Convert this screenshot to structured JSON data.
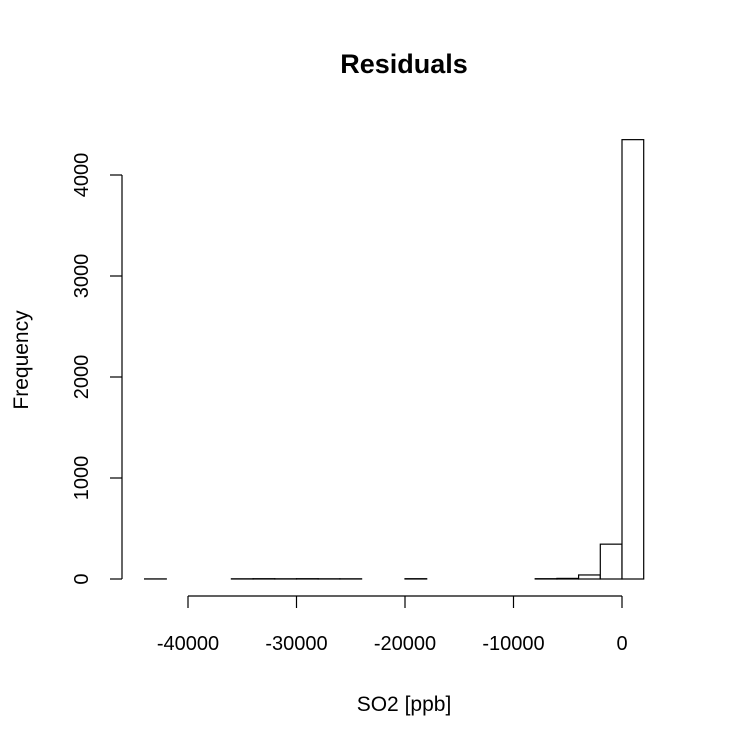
{
  "chart_data": {
    "type": "bar",
    "title": "Residuals",
    "xlabel": "SO2 [ppb]",
    "ylabel": "Frequency",
    "xlim": [
      -44000,
      4000
    ],
    "ylim": [
      0,
      4350
    ],
    "bin_width": 2000,
    "bins": [
      {
        "x0": -44000,
        "x1": -42000,
        "count": 1
      },
      {
        "x0": -42000,
        "x1": -40000,
        "count": 0
      },
      {
        "x0": -40000,
        "x1": -38000,
        "count": 0
      },
      {
        "x0": -38000,
        "x1": -36000,
        "count": 0
      },
      {
        "x0": -36000,
        "x1": -34000,
        "count": 2
      },
      {
        "x0": -34000,
        "x1": -32000,
        "count": 3
      },
      {
        "x0": -32000,
        "x1": -30000,
        "count": 2
      },
      {
        "x0": -30000,
        "x1": -28000,
        "count": 3
      },
      {
        "x0": -28000,
        "x1": -26000,
        "count": 2
      },
      {
        "x0": -26000,
        "x1": -24000,
        "count": 2
      },
      {
        "x0": -24000,
        "x1": -22000,
        "count": 0
      },
      {
        "x0": -22000,
        "x1": -20000,
        "count": 0
      },
      {
        "x0": -20000,
        "x1": -18000,
        "count": 3
      },
      {
        "x0": -18000,
        "x1": -16000,
        "count": 0
      },
      {
        "x0": -16000,
        "x1": -14000,
        "count": 0
      },
      {
        "x0": -14000,
        "x1": -12000,
        "count": 0
      },
      {
        "x0": -12000,
        "x1": -10000,
        "count": 0
      },
      {
        "x0": -10000,
        "x1": -8000,
        "count": 0
      },
      {
        "x0": -8000,
        "x1": -6000,
        "count": 3
      },
      {
        "x0": -6000,
        "x1": -4000,
        "count": 6
      },
      {
        "x0": -4000,
        "x1": -2000,
        "count": 40
      },
      {
        "x0": -2000,
        "x1": 0,
        "count": 345
      },
      {
        "x0": 0,
        "x1": 2000,
        "count": 4350
      }
    ],
    "x_ticks": [
      -40000,
      -30000,
      -20000,
      -10000,
      0
    ],
    "x_tick_labels": [
      "-40000",
      "-30000",
      "-20000",
      "-10000",
      "0"
    ],
    "y_ticks": [
      0,
      1000,
      2000,
      3000,
      4000
    ],
    "y_tick_labels": [
      "0",
      "1000",
      "2000",
      "3000",
      "4000"
    ],
    "grid": false,
    "bar_fill": "#ffffff",
    "bar_stroke": "#000000"
  }
}
